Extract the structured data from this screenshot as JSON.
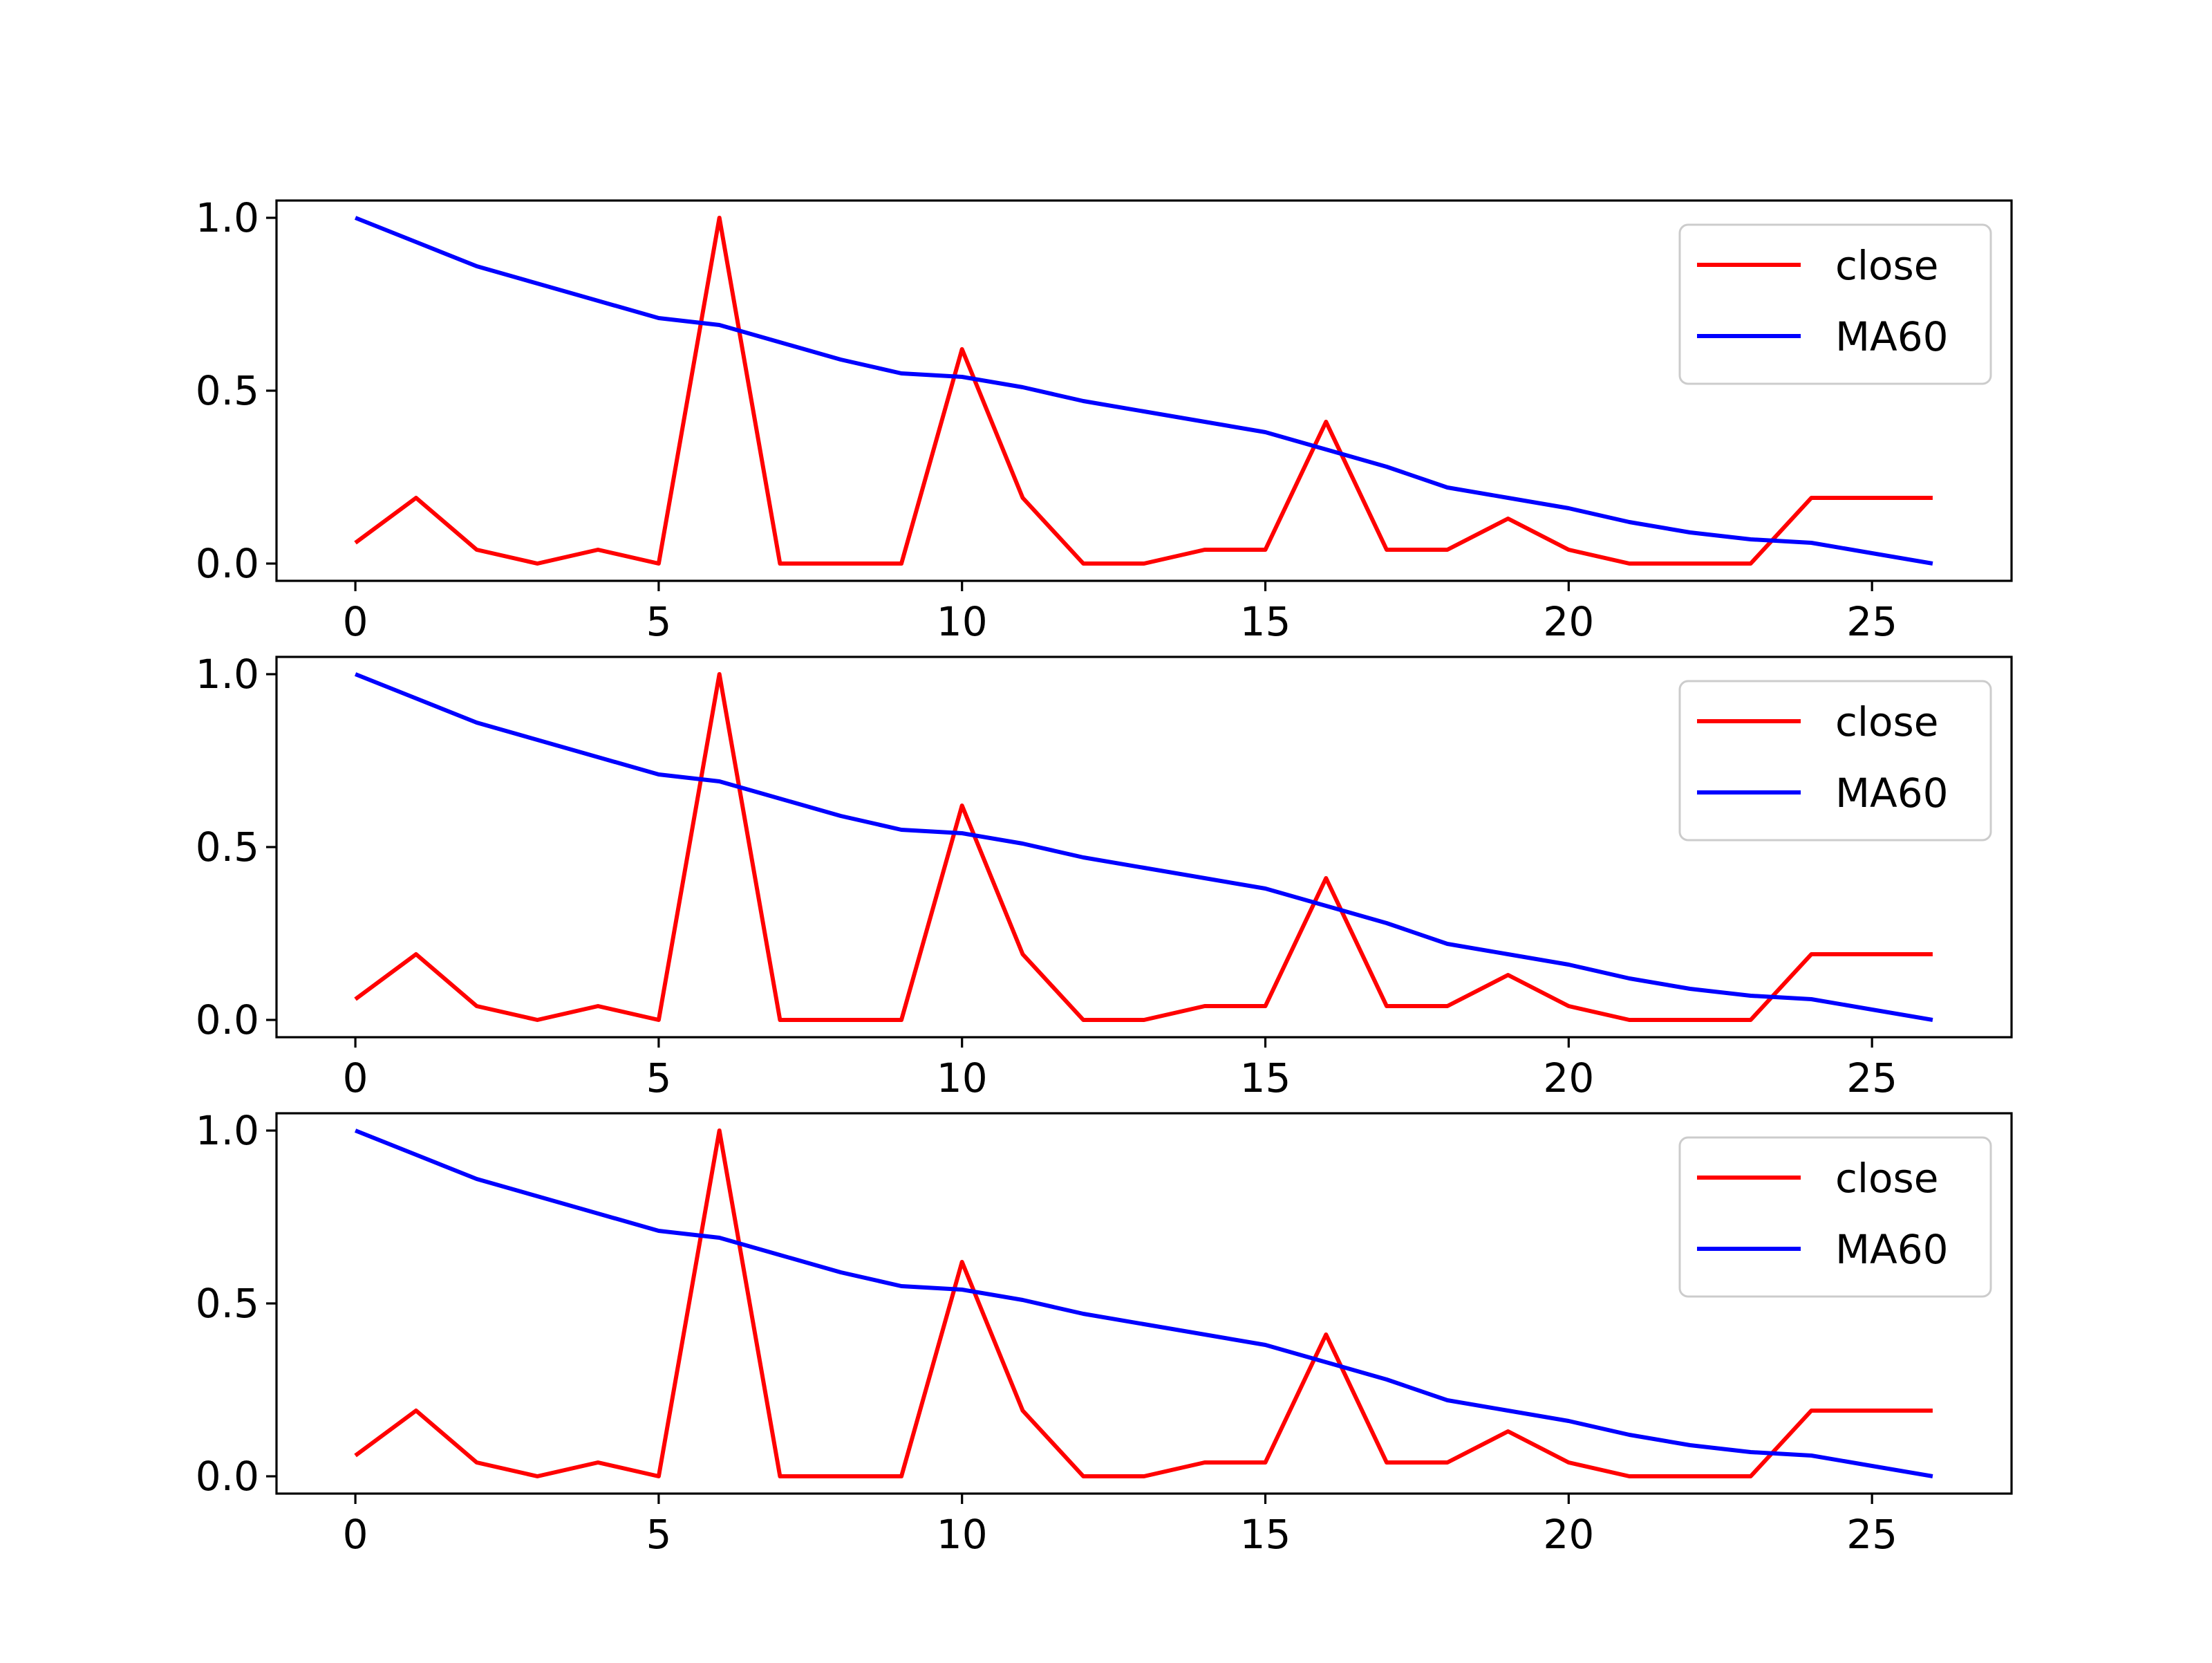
{
  "chart_data": [
    {
      "type": "line",
      "x": [
        0,
        1,
        2,
        3,
        4,
        5,
        6,
        7,
        8,
        9,
        10,
        11,
        12,
        13,
        14,
        15,
        16,
        17,
        18,
        19,
        20,
        21,
        22,
        23,
        24,
        25,
        26
      ],
      "xlim": [
        -1.3,
        27.3
      ],
      "ylim": [
        -0.05,
        1.05
      ],
      "xticks": [
        0,
        5,
        10,
        15,
        20,
        25
      ],
      "yticks": [
        0.0,
        0.5,
        1.0
      ],
      "xtick_labels": [
        "0",
        "5",
        "10",
        "15",
        "20",
        "25"
      ],
      "ytick_labels": [
        "0.0",
        "0.5",
        "1.0"
      ],
      "legend_position": "upper right",
      "grid": false,
      "series": [
        {
          "name": "close",
          "color": "#ff0000",
          "values": [
            0.06,
            0.19,
            0.04,
            0.0,
            0.04,
            0.0,
            1.0,
            0.0,
            0.0,
            0.0,
            0.62,
            0.19,
            0.0,
            0.0,
            0.04,
            0.04,
            0.41,
            0.04,
            0.04,
            0.13,
            0.04,
            0.0,
            0.0,
            0.0,
            0.19,
            0.19,
            0.19
          ]
        },
        {
          "name": "MA60",
          "color": "#0000ff",
          "values": [
            1.0,
            0.93,
            0.86,
            0.81,
            0.76,
            0.71,
            0.69,
            0.64,
            0.59,
            0.55,
            0.54,
            0.51,
            0.47,
            0.44,
            0.41,
            0.38,
            0.33,
            0.28,
            0.22,
            0.19,
            0.16,
            0.12,
            0.09,
            0.07,
            0.06,
            0.03,
            0.0
          ]
        }
      ]
    },
    {
      "type": "line",
      "x": [
        0,
        1,
        2,
        3,
        4,
        5,
        6,
        7,
        8,
        9,
        10,
        11,
        12,
        13,
        14,
        15,
        16,
        17,
        18,
        19,
        20,
        21,
        22,
        23,
        24,
        25,
        26
      ],
      "xlim": [
        -1.3,
        27.3
      ],
      "ylim": [
        -0.05,
        1.05
      ],
      "xticks": [
        0,
        5,
        10,
        15,
        20,
        25
      ],
      "yticks": [
        0.0,
        0.5,
        1.0
      ],
      "xtick_labels": [
        "0",
        "5",
        "10",
        "15",
        "20",
        "25"
      ],
      "ytick_labels": [
        "0.0",
        "0.5",
        "1.0"
      ],
      "legend_position": "upper right",
      "grid": false,
      "series": [
        {
          "name": "close",
          "color": "#ff0000",
          "values": [
            0.06,
            0.19,
            0.04,
            0.0,
            0.04,
            0.0,
            1.0,
            0.0,
            0.0,
            0.0,
            0.62,
            0.19,
            0.0,
            0.0,
            0.04,
            0.04,
            0.41,
            0.04,
            0.04,
            0.13,
            0.04,
            0.0,
            0.0,
            0.0,
            0.19,
            0.19,
            0.19
          ]
        },
        {
          "name": "MA60",
          "color": "#0000ff",
          "values": [
            1.0,
            0.93,
            0.86,
            0.81,
            0.76,
            0.71,
            0.69,
            0.64,
            0.59,
            0.55,
            0.54,
            0.51,
            0.47,
            0.44,
            0.41,
            0.38,
            0.33,
            0.28,
            0.22,
            0.19,
            0.16,
            0.12,
            0.09,
            0.07,
            0.06,
            0.03,
            0.0
          ]
        }
      ]
    },
    {
      "type": "line",
      "x": [
        0,
        1,
        2,
        3,
        4,
        5,
        6,
        7,
        8,
        9,
        10,
        11,
        12,
        13,
        14,
        15,
        16,
        17,
        18,
        19,
        20,
        21,
        22,
        23,
        24,
        25,
        26
      ],
      "xlim": [
        -1.3,
        27.3
      ],
      "ylim": [
        -0.05,
        1.05
      ],
      "xticks": [
        0,
        5,
        10,
        15,
        20,
        25
      ],
      "yticks": [
        0.0,
        0.5,
        1.0
      ],
      "xtick_labels": [
        "0",
        "5",
        "10",
        "15",
        "20",
        "25"
      ],
      "ytick_labels": [
        "0.0",
        "0.5",
        "1.0"
      ],
      "legend_position": "upper right",
      "grid": false,
      "series": [
        {
          "name": "close",
          "color": "#ff0000",
          "values": [
            0.06,
            0.19,
            0.04,
            0.0,
            0.04,
            0.0,
            1.0,
            0.0,
            0.0,
            0.0,
            0.62,
            0.19,
            0.0,
            0.0,
            0.04,
            0.04,
            0.41,
            0.04,
            0.04,
            0.13,
            0.04,
            0.0,
            0.0,
            0.0,
            0.19,
            0.19,
            0.19
          ]
        },
        {
          "name": "MA60",
          "color": "#0000ff",
          "values": [
            1.0,
            0.93,
            0.86,
            0.81,
            0.76,
            0.71,
            0.69,
            0.64,
            0.59,
            0.55,
            0.54,
            0.51,
            0.47,
            0.44,
            0.41,
            0.38,
            0.33,
            0.28,
            0.22,
            0.19,
            0.16,
            0.12,
            0.09,
            0.07,
            0.06,
            0.03,
            0.0
          ]
        }
      ]
    }
  ]
}
